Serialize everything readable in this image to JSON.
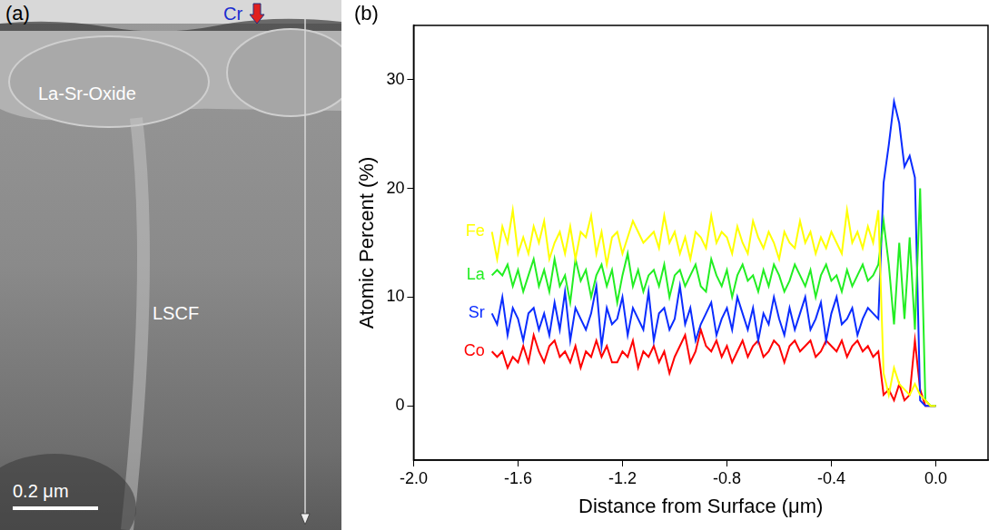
{
  "image_panel": {
    "label": "(a)",
    "annotations": [
      "La-Sr-Oxide",
      "Cr",
      "LSCF"
    ],
    "scale_bar": "0.2 μm"
  },
  "chart_data": {
    "type": "line",
    "panel": "(b)",
    "x_label": "Distance from Surface (μm)",
    "y_label": "Atomic Percent (%)",
    "x": [
      -1.7,
      -1.68,
      -1.66,
      -1.64,
      -1.62,
      -1.6,
      -1.58,
      -1.56,
      -1.54,
      -1.52,
      -1.5,
      -1.48,
      -1.46,
      -1.44,
      -1.42,
      -1.4,
      -1.38,
      -1.36,
      -1.34,
      -1.32,
      -1.3,
      -1.28,
      -1.26,
      -1.24,
      -1.22,
      -1.2,
      -1.18,
      -1.16,
      -1.14,
      -1.12,
      -1.1,
      -1.08,
      -1.06,
      -1.04,
      -1.02,
      -1.0,
      -0.98,
      -0.96,
      -0.94,
      -0.92,
      -0.9,
      -0.88,
      -0.86,
      -0.84,
      -0.82,
      -0.8,
      -0.78,
      -0.76,
      -0.74,
      -0.72,
      -0.7,
      -0.68,
      -0.66,
      -0.64,
      -0.62,
      -0.6,
      -0.58,
      -0.56,
      -0.54,
      -0.52,
      -0.5,
      -0.48,
      -0.46,
      -0.44,
      -0.42,
      -0.4,
      -0.38,
      -0.36,
      -0.34,
      -0.32,
      -0.3,
      -0.28,
      -0.26,
      -0.24,
      -0.22,
      -0.2,
      -0.18,
      -0.16,
      -0.14,
      -0.12,
      -0.1,
      -0.08,
      -0.06,
      -0.04,
      -0.02,
      0.0
    ],
    "series": [
      {
        "name": "Fe",
        "color": "#ffff00",
        "values": [
          16,
          13.5,
          16.5,
          15,
          18,
          14,
          15.5,
          14,
          16.5,
          15,
          17,
          13.5,
          15,
          16,
          14,
          16.5,
          13.5,
          16,
          15.5,
          17.5,
          14,
          16,
          13,
          15.5,
          16,
          14,
          15.5,
          17,
          16,
          15,
          15.5,
          16,
          14.5,
          17.5,
          15,
          16,
          14,
          15.5,
          13.5,
          16,
          15.5,
          14.5,
          17.5,
          15,
          16,
          15.5,
          14,
          16.5,
          15,
          14,
          17,
          15.5,
          14.5,
          16,
          15,
          13.5,
          16,
          15,
          14.5,
          17,
          15,
          16,
          14,
          15.5,
          14.5,
          16,
          15,
          14,
          18,
          15,
          16,
          14.5,
          16.5,
          15,
          18,
          3,
          1,
          3.5,
          2,
          1.5,
          1,
          2,
          1,
          0.5,
          0,
          0
        ]
      },
      {
        "name": "La",
        "color": "#22ee22",
        "values": [
          12,
          12.5,
          12,
          13,
          11,
          12.5,
          10.5,
          12,
          13.5,
          11,
          12.5,
          10.5,
          13.5,
          11,
          12,
          9.5,
          13.5,
          11.5,
          12.5,
          10,
          12,
          13,
          11,
          12.5,
          9.5,
          12,
          14,
          11,
          12.5,
          10.5,
          12,
          12.5,
          11,
          13,
          10,
          12,
          12.5,
          11,
          12,
          13,
          11,
          10.5,
          13.5,
          12,
          11,
          12.5,
          10,
          12,
          13,
          11.5,
          12,
          10.5,
          12.5,
          11,
          13,
          12,
          10.5,
          11.5,
          13,
          12,
          11,
          12.5,
          10,
          12,
          13,
          11.5,
          12,
          10.5,
          12.5,
          11,
          12,
          13,
          11.5,
          12,
          13,
          17,
          13,
          7.5,
          15,
          8,
          15.5,
          7,
          20,
          0.5,
          0,
          0
        ]
      },
      {
        "name": "Sr",
        "color": "#0a2cff",
        "values": [
          8.5,
          7.5,
          10,
          6.5,
          9,
          8,
          6,
          8.5,
          9,
          7,
          8.5,
          6.5,
          9.5,
          7,
          10.5,
          6,
          9,
          8,
          7,
          8.5,
          11,
          5.5,
          9,
          7.5,
          8,
          10,
          6.5,
          9,
          8,
          7,
          10.5,
          6,
          8.5,
          9,
          7,
          8,
          11,
          7.5,
          9,
          6,
          7.5,
          8.5,
          9.5,
          6.5,
          8,
          9,
          7,
          10,
          8.5,
          7,
          9,
          6,
          8.5,
          7.5,
          10,
          8,
          6.5,
          9,
          7,
          8.5,
          10,
          7,
          8,
          9.5,
          6,
          8.5,
          10,
          7.5,
          8,
          9,
          6.5,
          8,
          9,
          8.5,
          8,
          20.5,
          24,
          28,
          26,
          22,
          23,
          21,
          0.5,
          0,
          0,
          0
        ]
      },
      {
        "name": "Co",
        "color": "#ff0000",
        "values": [
          5,
          4.5,
          5,
          3.5,
          4.5,
          4,
          5.5,
          4,
          6.5,
          5,
          4,
          5.5,
          6,
          4.5,
          5,
          4,
          5.5,
          3.5,
          5,
          4.5,
          6,
          4.5,
          5.5,
          4,
          4,
          5,
          4.5,
          6,
          3.5,
          5,
          4.5,
          5.5,
          4,
          5,
          3,
          4.5,
          5.5,
          6.5,
          4,
          5,
          7,
          5.5,
          5,
          6,
          4.5,
          5.5,
          4,
          5,
          6,
          4.5,
          5.5,
          6,
          4.5,
          5,
          6,
          5.5,
          4,
          5.5,
          6,
          5,
          5.5,
          6,
          4.5,
          5,
          6,
          5.5,
          5,
          6,
          4.5,
          5.5,
          6,
          5,
          5.5,
          4.5,
          5,
          1,
          1.5,
          0.5,
          2,
          0.5,
          1,
          6,
          1.5,
          0,
          0,
          0
        ]
      }
    ],
    "xlim": [
      -2.0,
      0.2
    ],
    "xticks": [
      {
        "value": -2.0,
        "label": "-2.0"
      },
      {
        "value": -1.6,
        "label": "-1.6"
      },
      {
        "value": -1.2,
        "label": "-1.2"
      },
      {
        "value": -0.8,
        "label": "-0.8"
      },
      {
        "value": -0.4,
        "label": "-0.4"
      },
      {
        "value": 0,
        "label": "0.0"
      }
    ],
    "ylim": [
      -5,
      35
    ],
    "yticks": [
      0,
      10,
      20,
      30
    ],
    "grid": false
  }
}
